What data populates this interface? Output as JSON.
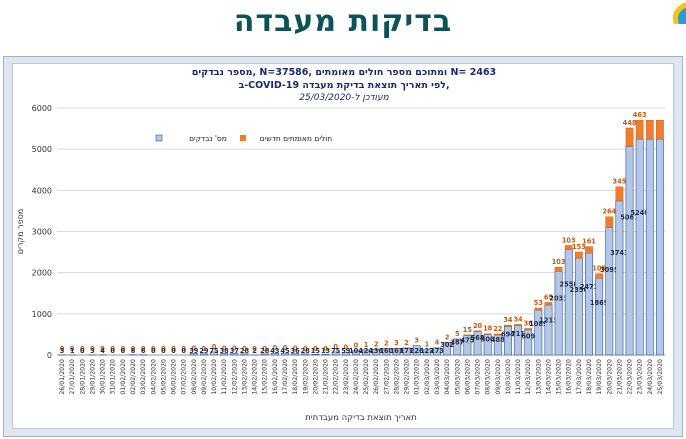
{
  "header": {
    "title": "בדיקות מעבדה"
  },
  "subtitle": {
    "line1": "מספר נבדקים, N=37586, ומתוכם מספר חולים מאומתים N= 2463",
    "line2": "ב-COVID-19 לפי תאריך תוצאת בדיקת מעבדה,",
    "line3": "מעודכן ל-25/03/2020"
  },
  "colors": {
    "tested": "#b4c7e7",
    "tested_border": "#2f5597",
    "confirmed": "#ed7d31",
    "title": "#0d5257"
  },
  "chart_data": {
    "type": "bar",
    "stacked": true,
    "xlabel": "תאריך תוצאת בדיקה מעבדתית",
    "ylabel": "מספר מקרים",
    "ylim": [
      0,
      6000
    ],
    "yticks": [
      0,
      1000,
      2000,
      3000,
      4000,
      5000,
      6000
    ],
    "grid": true,
    "legend_position": "top-left",
    "categories": [
      "26/01/2020",
      "27/01/2020",
      "28/01/2020",
      "29/01/2020",
      "30/01/2020",
      "31/01/2020",
      "01/02/2020",
      "02/02/2020",
      "03/02/2020",
      "04/02/2020",
      "05/02/2020",
      "06/02/2020",
      "07/02/2020",
      "08/02/2020",
      "09/02/2020",
      "10/02/2020",
      "11/02/2020",
      "12/02/2020",
      "13/02/2020",
      "14/02/2020",
      "15/02/2020",
      "16/02/2020",
      "17/02/2020",
      "18/02/2020",
      "19/02/2020",
      "20/02/2020",
      "21/02/2020",
      "22/02/2020",
      "23/02/2020",
      "24/02/2020",
      "25/02/2020",
      "26/02/2020",
      "27/02/2020",
      "28/02/2020",
      "29/02/2020",
      "01/03/2020",
      "02/03/2020",
      "03/03/2020",
      "04/03/2020",
      "05/03/2020",
      "06/03/2020",
      "07/03/2020",
      "08/03/2020",
      "09/03/2020",
      "10/03/2020",
      "11/03/2020",
      "12/03/2020",
      "13/03/2020",
      "14/03/2020",
      "15/03/2020",
      "16/03/2020",
      "17/03/2020",
      "18/03/2020",
      "19/03/2020",
      "20/03/2020",
      "21/03/2020",
      "22/03/2020",
      "23/03/2020",
      "24/03/2020",
      "25/03/2020"
    ],
    "series": [
      {
        "name": "מס' נבדקים",
        "color": "#b4c7e7",
        "values": [
          3,
          1,
          0,
          3,
          4,
          0,
          0,
          6,
          6,
          0,
          0,
          0,
          0,
          39,
          29,
          75,
          38,
          37,
          28,
          2,
          28,
          43,
          45,
          36,
          28,
          15,
          13,
          75,
          59,
          104,
          124,
          136,
          160,
          161,
          171,
          226,
          127,
          173,
          302,
          387,
          475,
          568,
          500,
          488,
          694,
          711,
          609,
          1089,
          1213,
          2033,
          2558,
          2350,
          2473,
          1869,
          3095,
          3743,
          5067,
          5240,
          5240,
          5240
        ]
      },
      {
        "name": "חולים מאומתים חדשים",
        "color": "#ed7d31",
        "values": [
          0,
          0,
          0,
          0,
          0,
          0,
          0,
          0,
          0,
          0,
          0,
          0,
          0,
          0,
          0,
          0,
          0,
          0,
          0,
          0,
          0,
          0,
          0,
          0,
          0,
          0,
          0,
          0,
          0,
          0,
          1,
          2,
          2,
          3,
          2,
          3,
          1,
          4,
          2,
          5,
          15,
          20,
          18,
          22,
          34,
          34,
          36,
          53,
          65,
          103,
          103,
          153,
          161,
          105,
          264,
          345,
          448,
          463,
          463,
          463
        ]
      }
    ],
    "tested_labels": [
      "3",
      "1",
      "0",
      "3",
      "4",
      "0",
      "0",
      "6",
      "6",
      "0",
      "0",
      "0",
      "0",
      "39",
      "29",
      "75",
      "38",
      "37",
      "28",
      "2",
      "28",
      "43",
      "45",
      "36",
      "28",
      "15",
      "13",
      "75",
      "59",
      "104",
      "124",
      "136",
      "160",
      "161",
      "171",
      "226",
      "127",
      "173",
      "302",
      "387",
      "475",
      "568",
      "500",
      "488",
      "694",
      "711",
      "609",
      "1089",
      "1213",
      "2033",
      "2558",
      "2350",
      "2473",
      "1869",
      "3095",
      "3743",
      "5067",
      "5240",
      "",
      ""
    ],
    "confirmed_labels": [
      "0",
      "0",
      "0",
      "0",
      "0",
      "0",
      "0",
      "0",
      "0",
      "0",
      "0",
      "0",
      "0",
      "0",
      "0",
      "0",
      "0",
      "0",
      "0",
      "0",
      "0",
      "0",
      "0",
      "0",
      "0",
      "0",
      "0",
      "0",
      "0",
      "0",
      "1",
      "2",
      "2",
      "3",
      "2",
      "3",
      "1",
      "4",
      "2",
      "5",
      "15",
      "20",
      "18",
      "22",
      "34",
      "34",
      "36",
      "53",
      "65",
      "103",
      "103",
      "153",
      "161",
      "105",
      "264",
      "345",
      "448",
      "463",
      "",
      ""
    ]
  }
}
